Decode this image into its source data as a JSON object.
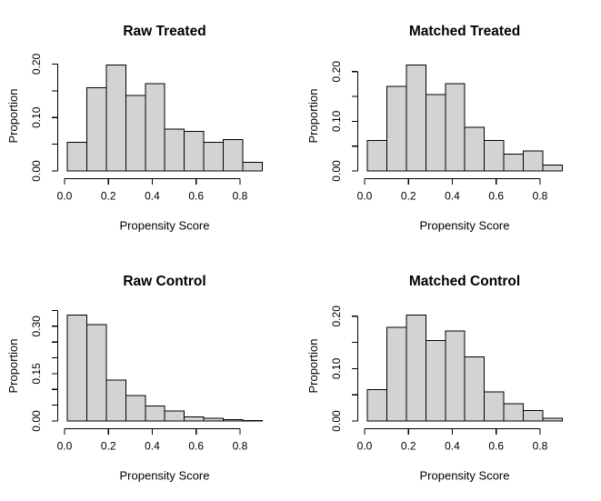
{
  "style": {
    "background": "#ffffff",
    "bar_fill": "#d3d3d3",
    "bar_stroke": "#000000",
    "axis_color": "#000000",
    "text_color": "#000000"
  },
  "chart_data": [
    {
      "type": "bar",
      "subtype": "histogram",
      "position": "top-left",
      "title": "Raw Treated",
      "xlabel": "Propensity Score",
      "ylabel": "Proportion",
      "bin_start": 0.012,
      "bin_width": 0.089,
      "values": [
        0.054,
        0.156,
        0.198,
        0.141,
        0.163,
        0.078,
        0.074,
        0.054,
        0.059,
        0.016
      ],
      "xlim": [
        0,
        0.9
      ],
      "ylim": [
        0,
        0.206
      ],
      "grid": false,
      "x_ticks": [
        {
          "v": 0.0,
          "label": "0.0"
        },
        {
          "v": 0.2,
          "label": "0.2"
        },
        {
          "v": 0.4,
          "label": "0.4"
        },
        {
          "v": 0.6,
          "label": "0.6"
        },
        {
          "v": 0.8,
          "label": "0.8"
        }
      ],
      "y_ticks": [
        {
          "v": 0.0,
          "label": "0.00"
        },
        {
          "v": 0.05,
          "label": ""
        },
        {
          "v": 0.1,
          "label": "0.10"
        },
        {
          "v": 0.15,
          "label": ""
        },
        {
          "v": 0.2,
          "label": "0.20"
        }
      ]
    },
    {
      "type": "bar",
      "subtype": "histogram",
      "position": "top-right",
      "title": "Matched Treated",
      "xlabel": "Propensity Score",
      "ylabel": "Proportion",
      "bin_start": 0.012,
      "bin_width": 0.089,
      "values": [
        0.061,
        0.17,
        0.213,
        0.154,
        0.176,
        0.088,
        0.061,
        0.034,
        0.04,
        0.012
      ],
      "xlim": [
        0,
        0.9
      ],
      "ylim": [
        0,
        0.222
      ],
      "grid": false,
      "x_ticks": [
        {
          "v": 0.0,
          "label": "0.0"
        },
        {
          "v": 0.2,
          "label": "0.2"
        },
        {
          "v": 0.4,
          "label": "0.4"
        },
        {
          "v": 0.6,
          "label": "0.6"
        },
        {
          "v": 0.8,
          "label": "0.8"
        }
      ],
      "y_ticks": [
        {
          "v": 0.0,
          "label": "0.00"
        },
        {
          "v": 0.05,
          "label": ""
        },
        {
          "v": 0.1,
          "label": "0.10"
        },
        {
          "v": 0.15,
          "label": ""
        },
        {
          "v": 0.2,
          "label": "0.20"
        }
      ]
    },
    {
      "type": "bar",
      "subtype": "histogram",
      "position": "bottom-left",
      "title": "Raw Control",
      "xlabel": "Propensity Score",
      "ylabel": "Proportion",
      "bin_start": 0.012,
      "bin_width": 0.089,
      "values": [
        0.335,
        0.305,
        0.129,
        0.081,
        0.048,
        0.031,
        0.013,
        0.008,
        0.004,
        0.002
      ],
      "xlim": [
        0,
        0.9
      ],
      "ylim": [
        0,
        0.348
      ],
      "grid": false,
      "x_ticks": [
        {
          "v": 0.0,
          "label": "0.0"
        },
        {
          "v": 0.2,
          "label": "0.2"
        },
        {
          "v": 0.4,
          "label": "0.4"
        },
        {
          "v": 0.6,
          "label": "0.6"
        },
        {
          "v": 0.8,
          "label": "0.8"
        }
      ],
      "y_ticks": [
        {
          "v": 0.0,
          "label": "0.00"
        },
        {
          "v": 0.05,
          "label": ""
        },
        {
          "v": 0.1,
          "label": ""
        },
        {
          "v": 0.15,
          "label": "0.15"
        },
        {
          "v": 0.2,
          "label": ""
        },
        {
          "v": 0.25,
          "label": ""
        },
        {
          "v": 0.3,
          "label": "0.30"
        },
        {
          "v": 0.35,
          "label": ""
        }
      ]
    },
    {
      "type": "bar",
      "subtype": "histogram",
      "position": "bottom-right",
      "title": "Matched Control",
      "xlabel": "Propensity Score",
      "ylabel": "Proportion",
      "bin_start": 0.012,
      "bin_width": 0.089,
      "values": [
        0.06,
        0.179,
        0.202,
        0.154,
        0.172,
        0.122,
        0.056,
        0.033,
        0.02,
        0.005
      ],
      "xlim": [
        0,
        0.9
      ],
      "ylim": [
        0,
        0.21
      ],
      "grid": false,
      "x_ticks": [
        {
          "v": 0.0,
          "label": "0.0"
        },
        {
          "v": 0.2,
          "label": "0.2"
        },
        {
          "v": 0.4,
          "label": "0.4"
        },
        {
          "v": 0.6,
          "label": "0.6"
        },
        {
          "v": 0.8,
          "label": "0.8"
        }
      ],
      "y_ticks": [
        {
          "v": 0.0,
          "label": "0.00"
        },
        {
          "v": 0.05,
          "label": ""
        },
        {
          "v": 0.1,
          "label": "0.10"
        },
        {
          "v": 0.15,
          "label": ""
        },
        {
          "v": 0.2,
          "label": "0.20"
        }
      ]
    }
  ]
}
